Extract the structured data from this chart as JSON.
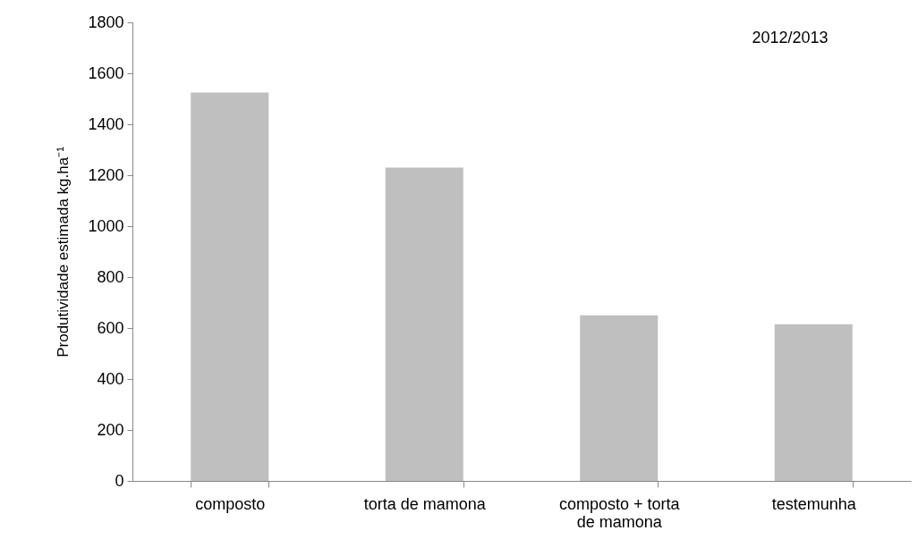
{
  "chart_data": {
    "type": "bar",
    "ylabel": "Produtividade estimada kg.ha⁻¹",
    "categories": [
      "composto",
      "torta de mamona",
      "composto + torta de mamona",
      "testemunha"
    ],
    "values": [
      1525,
      1230,
      650,
      615
    ],
    "color": "#bfbfbf",
    "ylim": [
      0,
      1800
    ],
    "yticks": [
      0,
      200,
      400,
      600,
      800,
      1000,
      1200,
      1400,
      1600,
      1800
    ],
    "grid": false,
    "annotations": [
      "2012/2013"
    ]
  }
}
